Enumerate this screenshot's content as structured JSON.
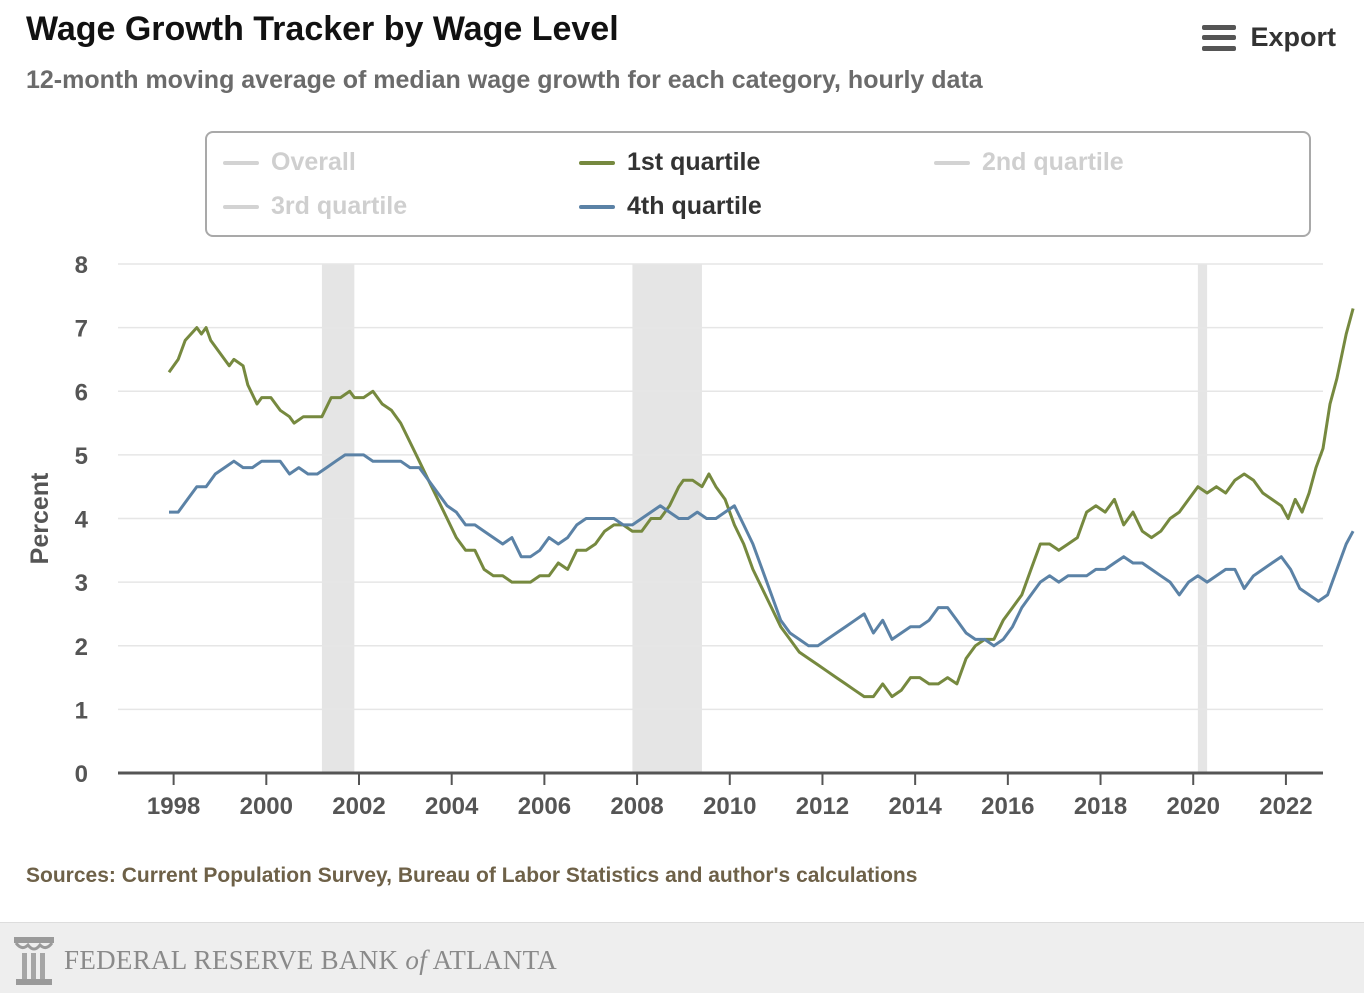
{
  "header": {
    "title": "Wage Growth Tracker by Wage Level",
    "subtitle": "12-month moving average of median wage growth for each category, hourly data",
    "export_label": "Export",
    "export_icon": "hamburger-menu-icon"
  },
  "legend": {
    "items": [
      {
        "label": "Overall",
        "active": false
      },
      {
        "label": "1st quartile",
        "active": true,
        "color": "#76893f"
      },
      {
        "label": "2nd quartile",
        "active": false
      },
      {
        "label": "3rd quartile",
        "active": false
      },
      {
        "label": "4th quartile",
        "active": true,
        "color": "#5b82a6"
      }
    ]
  },
  "chart_data": {
    "type": "line",
    "ylabel": "Percent",
    "xlabel": "",
    "ylim": [
      0,
      8
    ],
    "xlim": [
      1996.8,
      2022.8
    ],
    "y_ticks": [
      "0",
      "1",
      "2",
      "3",
      "4",
      "5",
      "6",
      "7",
      "8"
    ],
    "x_ticks": [
      "1998",
      "2000",
      "2002",
      "2004",
      "2006",
      "2008",
      "2010",
      "2012",
      "2014",
      "2016",
      "2018",
      "2020",
      "2022"
    ],
    "grid": true,
    "recession_bands": [
      [
        2001.2,
        2001.9
      ],
      [
        2007.9,
        2009.4
      ],
      [
        2020.1,
        2020.3
      ]
    ],
    "series": [
      {
        "name": "1st quartile",
        "color": "#76893f",
        "points": [
          [
            1997.9,
            6.3
          ],
          [
            1998.1,
            6.5
          ],
          [
            1998.25,
            6.8
          ],
          [
            1998.5,
            7.0
          ],
          [
            1998.6,
            6.9
          ],
          [
            1998.7,
            7.0
          ],
          [
            1998.8,
            6.8
          ],
          [
            1999.0,
            6.6
          ],
          [
            1999.2,
            6.4
          ],
          [
            1999.3,
            6.5
          ],
          [
            1999.5,
            6.4
          ],
          [
            1999.6,
            6.1
          ],
          [
            1999.8,
            5.8
          ],
          [
            1999.9,
            5.9
          ],
          [
            2000.1,
            5.9
          ],
          [
            2000.3,
            5.7
          ],
          [
            2000.5,
            5.6
          ],
          [
            2000.6,
            5.5
          ],
          [
            2000.8,
            5.6
          ],
          [
            2001.0,
            5.6
          ],
          [
            2001.2,
            5.6
          ],
          [
            2001.4,
            5.9
          ],
          [
            2001.6,
            5.9
          ],
          [
            2001.8,
            6.0
          ],
          [
            2001.9,
            5.9
          ],
          [
            2002.1,
            5.9
          ],
          [
            2002.3,
            6.0
          ],
          [
            2002.5,
            5.8
          ],
          [
            2002.7,
            5.7
          ],
          [
            2002.9,
            5.5
          ],
          [
            2003.1,
            5.2
          ],
          [
            2003.3,
            4.9
          ],
          [
            2003.5,
            4.6
          ],
          [
            2003.7,
            4.3
          ],
          [
            2003.9,
            4.0
          ],
          [
            2004.1,
            3.7
          ],
          [
            2004.3,
            3.5
          ],
          [
            2004.5,
            3.5
          ],
          [
            2004.7,
            3.2
          ],
          [
            2004.9,
            3.1
          ],
          [
            2005.1,
            3.1
          ],
          [
            2005.3,
            3.0
          ],
          [
            2005.5,
            3.0
          ],
          [
            2005.7,
            3.0
          ],
          [
            2005.9,
            3.1
          ],
          [
            2006.1,
            3.1
          ],
          [
            2006.3,
            3.3
          ],
          [
            2006.5,
            3.2
          ],
          [
            2006.7,
            3.5
          ],
          [
            2006.9,
            3.5
          ],
          [
            2007.1,
            3.6
          ],
          [
            2007.3,
            3.8
          ],
          [
            2007.5,
            3.9
          ],
          [
            2007.7,
            3.9
          ],
          [
            2007.9,
            3.8
          ],
          [
            2008.1,
            3.8
          ],
          [
            2008.3,
            4.0
          ],
          [
            2008.5,
            4.0
          ],
          [
            2008.7,
            4.2
          ],
          [
            2008.9,
            4.5
          ],
          [
            2009.0,
            4.6
          ],
          [
            2009.2,
            4.6
          ],
          [
            2009.4,
            4.5
          ],
          [
            2009.55,
            4.7
          ],
          [
            2009.7,
            4.5
          ],
          [
            2009.9,
            4.3
          ],
          [
            2010.1,
            3.9
          ],
          [
            2010.3,
            3.6
          ],
          [
            2010.5,
            3.2
          ],
          [
            2010.7,
            2.9
          ],
          [
            2010.9,
            2.6
          ],
          [
            2011.1,
            2.3
          ],
          [
            2011.3,
            2.1
          ],
          [
            2011.5,
            1.9
          ],
          [
            2011.7,
            1.8
          ],
          [
            2011.9,
            1.7
          ],
          [
            2012.1,
            1.6
          ],
          [
            2012.3,
            1.5
          ],
          [
            2012.5,
            1.4
          ],
          [
            2012.7,
            1.3
          ],
          [
            2012.9,
            1.2
          ],
          [
            2013.1,
            1.2
          ],
          [
            2013.3,
            1.4
          ],
          [
            2013.5,
            1.2
          ],
          [
            2013.7,
            1.3
          ],
          [
            2013.9,
            1.5
          ],
          [
            2014.1,
            1.5
          ],
          [
            2014.3,
            1.4
          ],
          [
            2014.5,
            1.4
          ],
          [
            2014.7,
            1.5
          ],
          [
            2014.9,
            1.4
          ],
          [
            2015.1,
            1.8
          ],
          [
            2015.3,
            2.0
          ],
          [
            2015.5,
            2.1
          ],
          [
            2015.7,
            2.1
          ],
          [
            2015.9,
            2.4
          ],
          [
            2016.1,
            2.6
          ],
          [
            2016.3,
            2.8
          ],
          [
            2016.5,
            3.2
          ],
          [
            2016.7,
            3.6
          ],
          [
            2016.9,
            3.6
          ],
          [
            2017.1,
            3.5
          ],
          [
            2017.3,
            3.6
          ],
          [
            2017.5,
            3.7
          ],
          [
            2017.7,
            4.1
          ],
          [
            2017.9,
            4.2
          ],
          [
            2018.1,
            4.1
          ],
          [
            2018.3,
            4.3
          ],
          [
            2018.5,
            3.9
          ],
          [
            2018.7,
            4.1
          ],
          [
            2018.9,
            3.8
          ],
          [
            2019.1,
            3.7
          ],
          [
            2019.3,
            3.8
          ],
          [
            2019.5,
            4.0
          ],
          [
            2019.7,
            4.1
          ],
          [
            2019.9,
            4.3
          ],
          [
            2020.1,
            4.5
          ],
          [
            2020.3,
            4.4
          ],
          [
            2020.5,
            4.5
          ],
          [
            2020.7,
            4.4
          ],
          [
            2020.9,
            4.6
          ],
          [
            2021.1,
            4.7
          ],
          [
            2021.3,
            4.6
          ],
          [
            2021.5,
            4.4
          ],
          [
            2021.7,
            4.3
          ],
          [
            2021.9,
            4.2
          ],
          [
            2022.05,
            4.0
          ],
          [
            2022.2,
            4.3
          ],
          [
            2022.35,
            4.1
          ],
          [
            2022.5,
            4.4
          ],
          [
            2022.65,
            4.8
          ],
          [
            2022.8,
            5.1
          ],
          [
            2022.95,
            5.8
          ],
          [
            2023.1,
            6.2
          ],
          [
            2023.3,
            6.9
          ],
          [
            2023.45,
            7.3
          ]
        ]
      },
      {
        "name": "4th quartile",
        "color": "#5b82a6",
        "points": [
          [
            1997.9,
            4.1
          ],
          [
            1998.1,
            4.1
          ],
          [
            1998.3,
            4.3
          ],
          [
            1998.5,
            4.5
          ],
          [
            1998.7,
            4.5
          ],
          [
            1998.9,
            4.7
          ],
          [
            1999.1,
            4.8
          ],
          [
            1999.3,
            4.9
          ],
          [
            1999.5,
            4.8
          ],
          [
            1999.7,
            4.8
          ],
          [
            1999.9,
            4.9
          ],
          [
            2000.1,
            4.9
          ],
          [
            2000.3,
            4.9
          ],
          [
            2000.5,
            4.7
          ],
          [
            2000.7,
            4.8
          ],
          [
            2000.9,
            4.7
          ],
          [
            2001.1,
            4.7
          ],
          [
            2001.3,
            4.8
          ],
          [
            2001.5,
            4.9
          ],
          [
            2001.7,
            5.0
          ],
          [
            2001.9,
            5.0
          ],
          [
            2002.1,
            5.0
          ],
          [
            2002.3,
            4.9
          ],
          [
            2002.5,
            4.9
          ],
          [
            2002.7,
            4.9
          ],
          [
            2002.9,
            4.9
          ],
          [
            2003.1,
            4.8
          ],
          [
            2003.3,
            4.8
          ],
          [
            2003.5,
            4.6
          ],
          [
            2003.7,
            4.4
          ],
          [
            2003.9,
            4.2
          ],
          [
            2004.1,
            4.1
          ],
          [
            2004.3,
            3.9
          ],
          [
            2004.5,
            3.9
          ],
          [
            2004.7,
            3.8
          ],
          [
            2004.9,
            3.7
          ],
          [
            2005.1,
            3.6
          ],
          [
            2005.3,
            3.7
          ],
          [
            2005.5,
            3.4
          ],
          [
            2005.7,
            3.4
          ],
          [
            2005.9,
            3.5
          ],
          [
            2006.1,
            3.7
          ],
          [
            2006.3,
            3.6
          ],
          [
            2006.5,
            3.7
          ],
          [
            2006.7,
            3.9
          ],
          [
            2006.9,
            4.0
          ],
          [
            2007.1,
            4.0
          ],
          [
            2007.3,
            4.0
          ],
          [
            2007.5,
            4.0
          ],
          [
            2007.7,
            3.9
          ],
          [
            2007.9,
            3.9
          ],
          [
            2008.1,
            4.0
          ],
          [
            2008.3,
            4.1
          ],
          [
            2008.5,
            4.2
          ],
          [
            2008.7,
            4.1
          ],
          [
            2008.9,
            4.0
          ],
          [
            2009.1,
            4.0
          ],
          [
            2009.3,
            4.1
          ],
          [
            2009.5,
            4.0
          ],
          [
            2009.7,
            4.0
          ],
          [
            2009.9,
            4.1
          ],
          [
            2010.1,
            4.2
          ],
          [
            2010.3,
            3.9
          ],
          [
            2010.5,
            3.6
          ],
          [
            2010.7,
            3.2
          ],
          [
            2010.9,
            2.8
          ],
          [
            2011.1,
            2.4
          ],
          [
            2011.3,
            2.2
          ],
          [
            2011.5,
            2.1
          ],
          [
            2011.7,
            2.0
          ],
          [
            2011.9,
            2.0
          ],
          [
            2012.1,
            2.1
          ],
          [
            2012.3,
            2.2
          ],
          [
            2012.5,
            2.3
          ],
          [
            2012.7,
            2.4
          ],
          [
            2012.9,
            2.5
          ],
          [
            2013.1,
            2.2
          ],
          [
            2013.3,
            2.4
          ],
          [
            2013.5,
            2.1
          ],
          [
            2013.7,
            2.2
          ],
          [
            2013.9,
            2.3
          ],
          [
            2014.1,
            2.3
          ],
          [
            2014.3,
            2.4
          ],
          [
            2014.5,
            2.6
          ],
          [
            2014.7,
            2.6
          ],
          [
            2014.9,
            2.4
          ],
          [
            2015.1,
            2.2
          ],
          [
            2015.3,
            2.1
          ],
          [
            2015.5,
            2.1
          ],
          [
            2015.7,
            2.0
          ],
          [
            2015.9,
            2.1
          ],
          [
            2016.1,
            2.3
          ],
          [
            2016.3,
            2.6
          ],
          [
            2016.5,
            2.8
          ],
          [
            2016.7,
            3.0
          ],
          [
            2016.9,
            3.1
          ],
          [
            2017.1,
            3.0
          ],
          [
            2017.3,
            3.1
          ],
          [
            2017.5,
            3.1
          ],
          [
            2017.7,
            3.1
          ],
          [
            2017.9,
            3.2
          ],
          [
            2018.1,
            3.2
          ],
          [
            2018.3,
            3.3
          ],
          [
            2018.5,
            3.4
          ],
          [
            2018.7,
            3.3
          ],
          [
            2018.9,
            3.3
          ],
          [
            2019.1,
            3.2
          ],
          [
            2019.3,
            3.1
          ],
          [
            2019.5,
            3.0
          ],
          [
            2019.7,
            2.8
          ],
          [
            2019.9,
            3.0
          ],
          [
            2020.1,
            3.1
          ],
          [
            2020.3,
            3.0
          ],
          [
            2020.5,
            3.1
          ],
          [
            2020.7,
            3.2
          ],
          [
            2020.9,
            3.2
          ],
          [
            2021.1,
            2.9
          ],
          [
            2021.3,
            3.1
          ],
          [
            2021.5,
            3.2
          ],
          [
            2021.7,
            3.3
          ],
          [
            2021.9,
            3.4
          ],
          [
            2022.1,
            3.2
          ],
          [
            2022.3,
            2.9
          ],
          [
            2022.5,
            2.8
          ],
          [
            2022.7,
            2.7
          ],
          [
            2022.9,
            2.8
          ],
          [
            2023.1,
            3.2
          ],
          [
            2023.3,
            3.6
          ],
          [
            2023.45,
            3.8
          ]
        ]
      }
    ]
  },
  "sources": "Sources: Current Population Survey, Bureau of Labor Statistics and author's calculations",
  "footer": {
    "bank_name_pre": "FEDERAL RESERVE BANK ",
    "bank_name_of": "of",
    "bank_name_post": " ATLANTA",
    "logo_icon": "federal-reserve-column-icon"
  }
}
